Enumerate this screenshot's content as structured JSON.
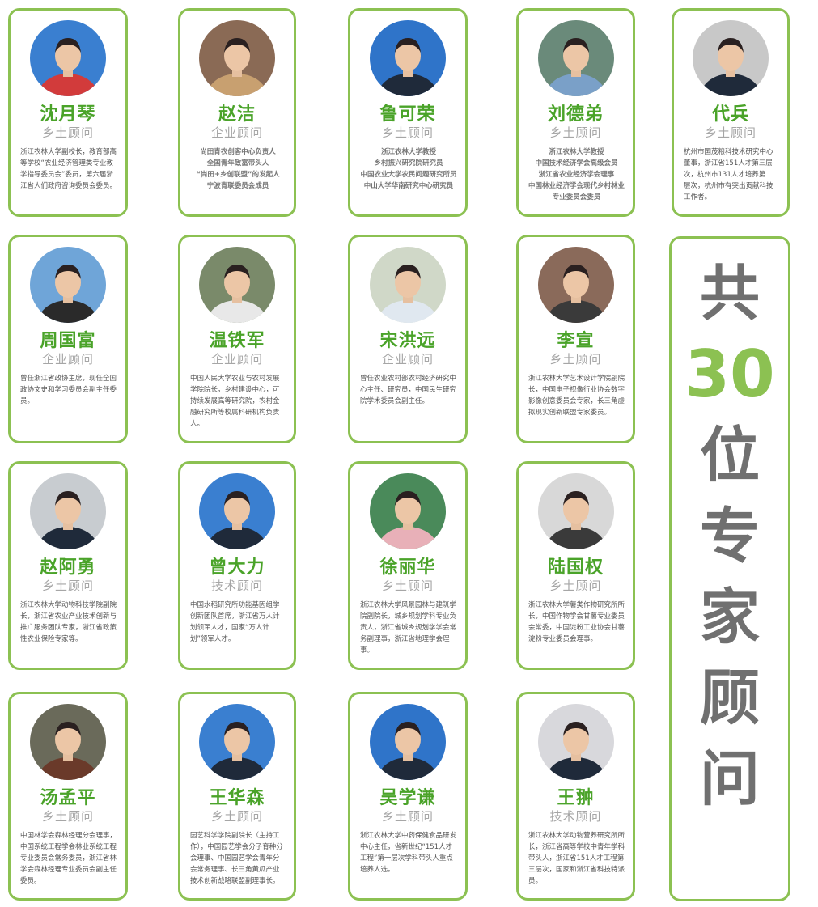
{
  "experts": [
    {
      "name": "沈月琴",
      "role": "乡土顾问",
      "desc": "浙江农林大学副校长，教育部高等学校“农业经济管理类专业教学指导委员会”委员，第六届浙江省人们政府咨询委员会委员。",
      "bg": "#3a7fd0",
      "shirt": "#d23b3b"
    },
    {
      "name": "赵洁",
      "role": "企业顾问",
      "desc": "尚田青农创客中心负责人\n全国青年致富带头人\n“尚田+乡创联盟”的发起人\n宁波青联委员会成员",
      "bg": "#8a6a55",
      "shirt": "#c8a070"
    },
    {
      "name": "鲁可荣",
      "role": "乡土顾问",
      "desc": "浙江农林大学教授\n乡村振兴研究院研究员\n中国农业大学农民问题研究所员\n中山大学华南研究中心研究员",
      "bg": "#2f74c9",
      "shirt": "#1f2a3a"
    },
    {
      "name": "刘德弟",
      "role": "乡土顾问",
      "desc": "浙江农林大学教授\n中国技术经济学会高级会员\n浙江省农业经济学会理事\n中国林业经济学会现代乡村林业专业委员会委员",
      "bg": "#6a8a7a",
      "shirt": "#7aa0c8"
    },
    {
      "name": "代兵",
      "role": "乡土顾问",
      "desc": "杭州市国茂粮科技术研究中心董事，浙江省151人才第三层次，杭州市131人才培养第二层次，杭州市有突出贡献科技工作者。",
      "bg": "#c8c8c8",
      "shirt": "#1f2a3a"
    },
    {
      "name": "周国富",
      "role": "企业顾问",
      "desc": "曾任浙江省政协主席，现任全国政协文史和学习委员会副主任委员。",
      "bg": "#6fa5d8",
      "shirt": "#2a2a2a"
    },
    {
      "name": "温铁军",
      "role": "企业顾问",
      "desc": "中国人民大学农业与农村发展学院院长，乡村建设中心，可持续发展高等研究院，农村金融研究所等校属科研机构负责人。",
      "bg": "#7a8a6a",
      "shirt": "#e8e8e8"
    },
    {
      "name": "宋洪远",
      "role": "企业顾问",
      "desc": "曾任农业农村部农村经济研究中心主任、研究员，中国民生研究院学术委员会副主任。",
      "bg": "#d0d8c8",
      "shirt": "#e0e8f0"
    },
    {
      "name": "李宣",
      "role": "乡土顾问",
      "desc": "浙江农林大学艺术设计学院副院长，中国电子视像行业协会数字影像创意委员会专家，长三角虚拟现实创新联盟专家委员。",
      "bg": "#8a6a5a",
      "shirt": "#3a3a3a"
    },
    {
      "name": "赵阿勇",
      "role": "乡土顾问",
      "desc": "浙江农林大学动物科技学院副院长，浙江省农业产业技术创新与推广服务团队专家，浙江省政策性农业保险专家等。",
      "bg": "#c8ccd0",
      "shirt": "#1f2a3a"
    },
    {
      "name": "曾大力",
      "role": "技术顾问",
      "desc": "中国水稻研究所功能基因组学创新团队首席，浙江省万人计划领军人才，国家“万人计划”领军人才。",
      "bg": "#3a7fd0",
      "shirt": "#1f2a3a"
    },
    {
      "name": "徐丽华",
      "role": "乡土顾问",
      "desc": "浙江农林大学风景园林与建筑学院副院长，城乡规划学科专业负责人，浙江省城乡规划学学会常务副理事，浙江省地理学会理事。",
      "bg": "#4a8a5a",
      "shirt": "#e8b0b8"
    },
    {
      "name": "陆国权",
      "role": "乡土顾问",
      "desc": "浙江农林大学薯类作物研究所所长，中国作物学会甘薯专业委员会常委，中国淀粉工业协会甘薯淀粉专业委员会理事。",
      "bg": "#d8d8d8",
      "shirt": "#3a3a3a"
    },
    {
      "name": "汤孟平",
      "role": "乡土顾问",
      "desc": "中国林学会森林经理分会理事，中国系统工程学会林业系统工程专业委员会常务委员，浙江省林学会森林经理专业委员会副主任委员。",
      "bg": "#6a6a5a",
      "shirt": "#6a3a2a"
    },
    {
      "name": "王华森",
      "role": "乡土顾问",
      "desc": "园艺科学学院副院长（主持工作），中国园艺学会分子育种分会理事、中国园艺学会青年分会常务理事、长三角黄瓜产业技术创新战略联盟副理事长。",
      "bg": "#3a7fd0",
      "shirt": "#1f2a3a"
    },
    {
      "name": "吴学谦",
      "role": "乡土顾问",
      "desc": "浙江农林大学中药保健食品研发中心主任，省新世纪“151人才工程”第一层次学科带头人重点培养人选。",
      "bg": "#2f74c9",
      "shirt": "#1f2a3a"
    },
    {
      "name": "王翀",
      "role": "技术顾问",
      "desc": "浙江农林大学动物营养研究所所长，浙江省高等学校中青年学科带头人，浙江省151人才工程第三层次，国家和浙江省科技特派员。",
      "bg": "#d8d8dc",
      "shirt": "#1f2a3a"
    }
  ],
  "side_panel": {
    "line1": "共",
    "count": "30",
    "rest": [
      "位",
      "专",
      "家",
      "顾",
      "问"
    ]
  },
  "colors": {
    "accent": "#8cc152",
    "name": "#4aa329",
    "role": "#a6a6a6",
    "big": "#707070"
  }
}
